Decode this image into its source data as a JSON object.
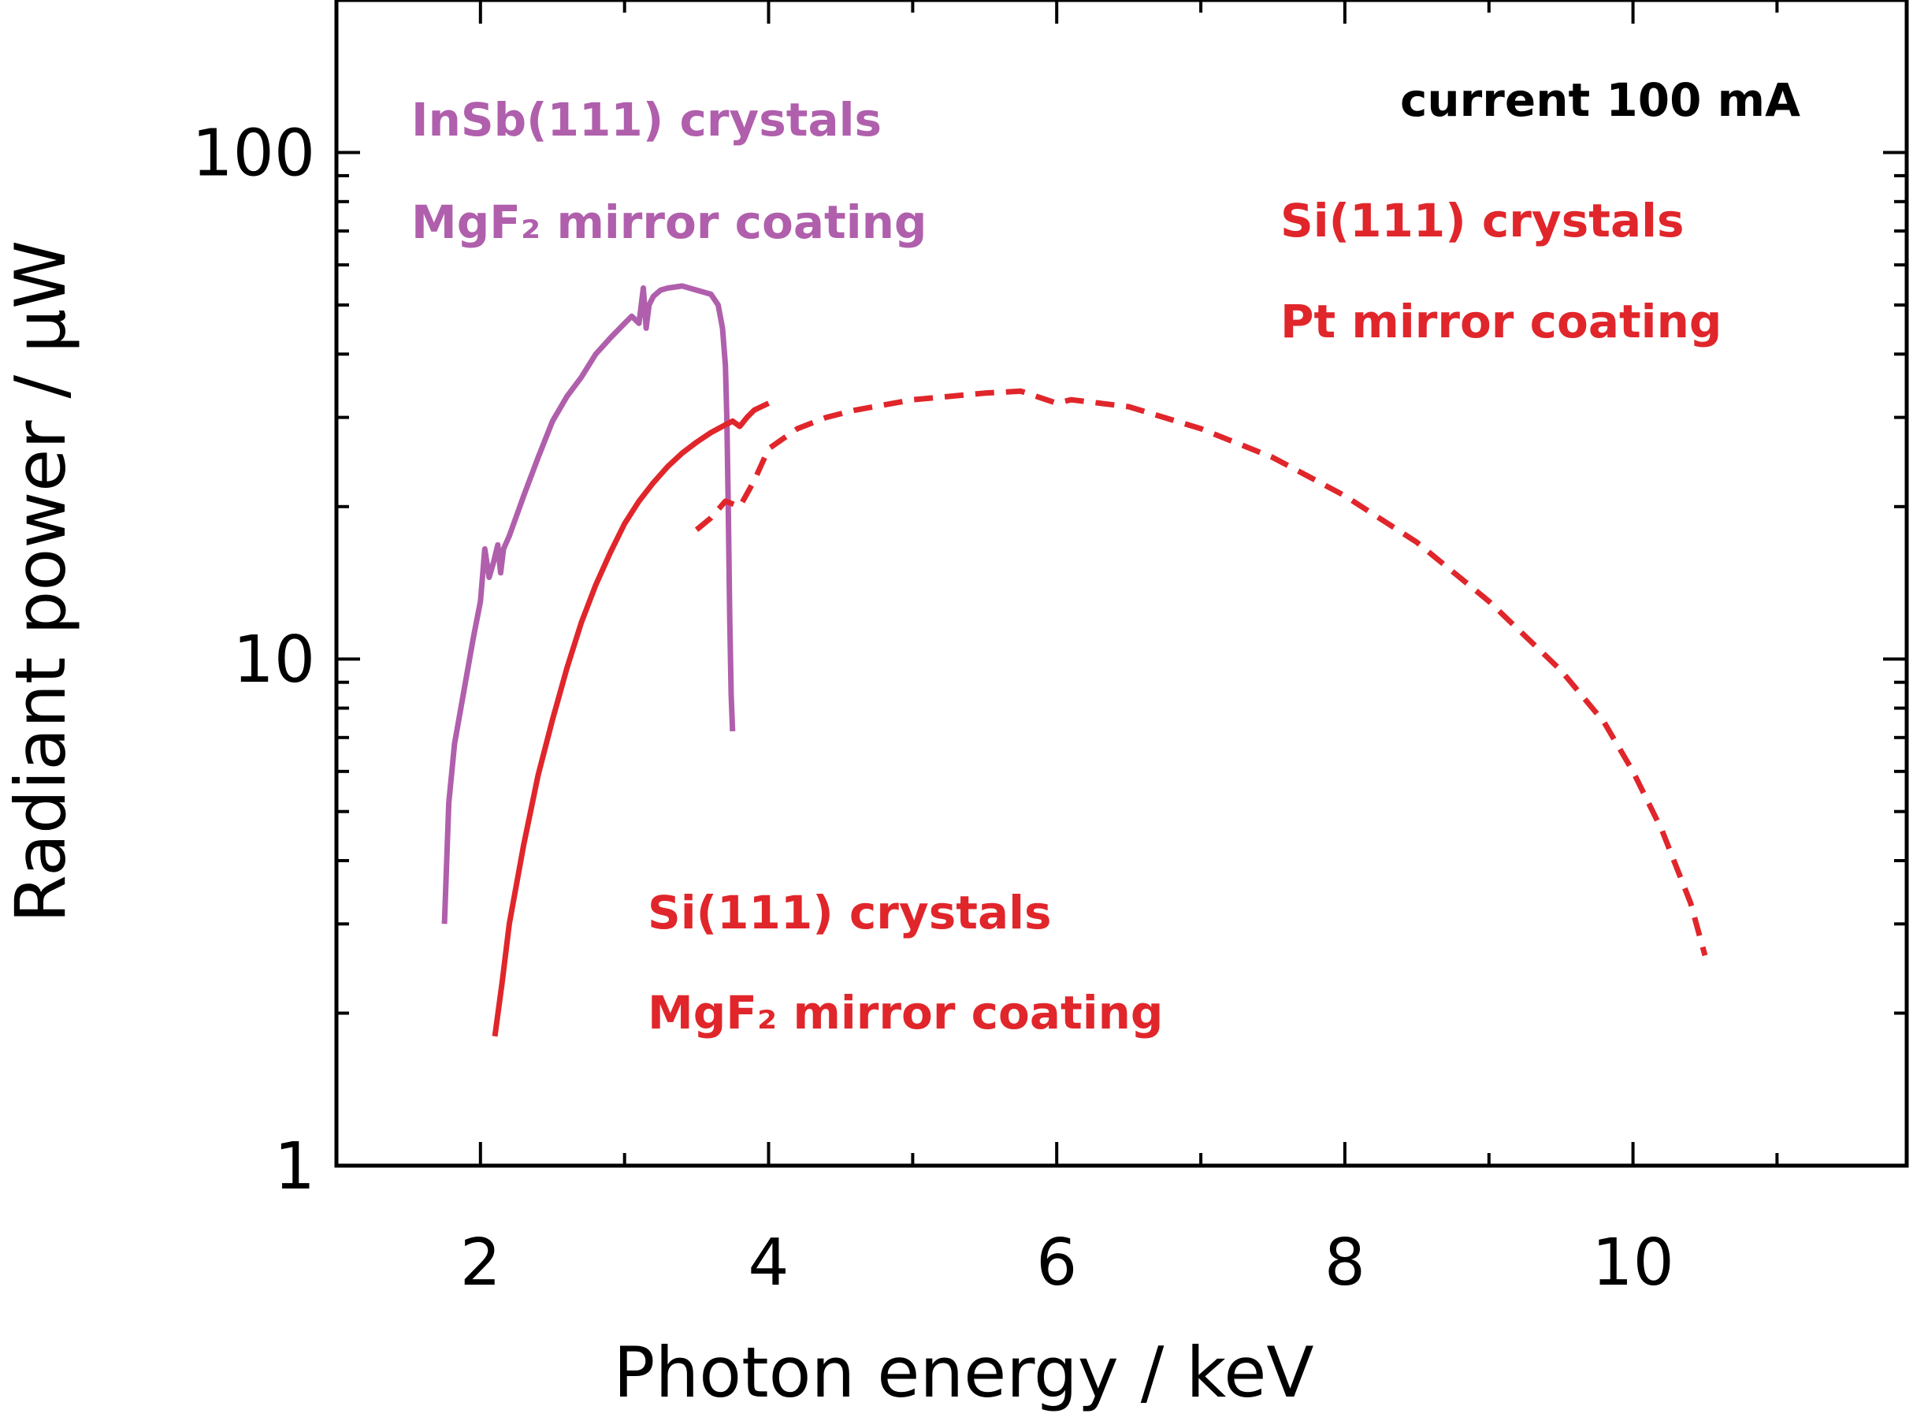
{
  "chart_data": {
    "type": "line",
    "xlabel": "Photon energy / keV",
    "ylabel": "Radiant power / μW",
    "xlim": [
      1.0,
      11.9
    ],
    "ylim": [
      1,
      200
    ],
    "yscale": "log",
    "xticks": [
      "2",
      "4",
      "6",
      "8",
      "10"
    ],
    "yticks": [
      "1",
      "10",
      "100"
    ],
    "grid": false,
    "annotations": [
      {
        "text": "current 100 mA",
        "color": "#000000"
      },
      {
        "text": "InSb(111) crystals",
        "color": "#b05fac"
      },
      {
        "text": "MgF₂ mirror coating",
        "color": "#b05fac"
      },
      {
        "text": "Si(111) crystals",
        "color": "#e0262b"
      },
      {
        "text": "Pt mirror coating",
        "color": "#e0262b"
      },
      {
        "text": "Si(111) crystals",
        "color": "#e0262b"
      },
      {
        "text": "MgF₂ mirror coating",
        "color": "#e0262b"
      }
    ],
    "series": [
      {
        "color": "#b05fac",
        "style": "solid",
        "x": [
          1.75,
          1.78,
          1.82,
          1.88,
          1.95,
          2.0,
          2.03,
          2.06,
          2.09,
          2.12,
          2.14,
          2.16,
          2.2,
          2.3,
          2.4,
          2.5,
          2.6,
          2.7,
          2.8,
          2.9,
          3.0,
          3.05,
          3.1,
          3.13,
          3.15,
          3.17,
          3.2,
          3.25,
          3.3,
          3.4,
          3.5,
          3.6,
          3.65,
          3.68,
          3.7,
          3.71,
          3.72,
          3.73,
          3.74,
          3.75
        ],
        "y": [
          3.0,
          5.2,
          6.8,
          8.5,
          11.0,
          13.0,
          16.5,
          14.5,
          15.5,
          16.8,
          14.8,
          16.5,
          17.5,
          21.0,
          25.0,
          29.5,
          33.0,
          36.0,
          40.0,
          43.0,
          46.0,
          47.5,
          46.0,
          54.0,
          45.0,
          50.0,
          52.0,
          53.5,
          54.0,
          54.5,
          53.5,
          52.5,
          50.0,
          45.0,
          38.0,
          30.0,
          20.0,
          12.0,
          8.5,
          7.2
        ]
      },
      {
        "color": "#e0262b",
        "style": "solid",
        "x": [
          2.1,
          2.15,
          2.2,
          2.3,
          2.4,
          2.5,
          2.6,
          2.7,
          2.8,
          2.9,
          3.0,
          3.1,
          3.2,
          3.3,
          3.4,
          3.5,
          3.6,
          3.7,
          3.75,
          3.8,
          3.85,
          3.9,
          4.0
        ],
        "y": [
          1.8,
          2.3,
          3.0,
          4.3,
          5.9,
          7.6,
          9.6,
          11.8,
          14.0,
          16.2,
          18.5,
          20.5,
          22.3,
          24.0,
          25.5,
          26.8,
          28.0,
          29.0,
          29.5,
          28.8,
          30.0,
          31.0,
          32.0
        ]
      },
      {
        "color": "#e0262b",
        "style": "dashed",
        "x": [
          3.5,
          3.6,
          3.7,
          3.8,
          3.9,
          4.0,
          4.2,
          4.4,
          4.6,
          5.0,
          5.5,
          5.75,
          6.0,
          6.1,
          6.5,
          7.0,
          7.5,
          8.0,
          8.5,
          9.0,
          9.5,
          9.8,
          10.0,
          10.2,
          10.4,
          10.5
        ],
        "y": [
          18.0,
          19.0,
          20.5,
          20.0,
          22.5,
          26.0,
          28.5,
          30.0,
          31.0,
          32.5,
          33.5,
          33.8,
          32.0,
          32.5,
          31.5,
          28.5,
          25.0,
          21.0,
          17.0,
          13.0,
          9.5,
          7.5,
          6.0,
          4.6,
          3.3,
          2.6
        ]
      }
    ]
  }
}
